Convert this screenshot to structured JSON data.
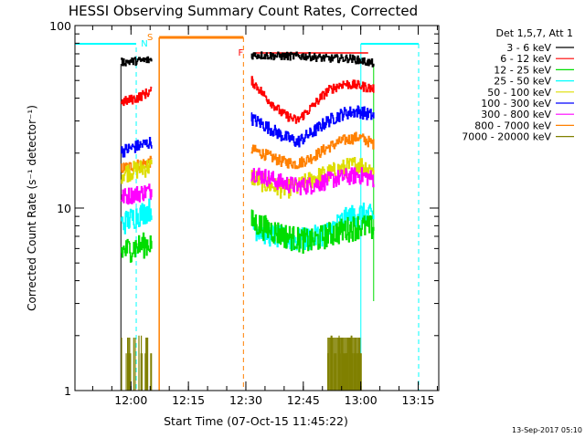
{
  "chart_data": {
    "type": "line",
    "title": "HESSI Observing Summary Count Rates, Corrected",
    "xlabel": "Start Time (07-Oct-15 11:45:22)",
    "ylabel": "Corrected Count Rate (s⁻¹ detector⁻¹)",
    "x_unit": "minutes after 11:45:22",
    "xlim": [
      0,
      95
    ],
    "ylim": [
      1,
      100
    ],
    "yscale": "log",
    "grid": false,
    "legend_position": "right, outside plot",
    "legend_title": "Det 1,5,7, Att 1",
    "x_ticks": [
      "12:00",
      "12:15",
      "12:30",
      "12:45",
      "13:00",
      "13:15"
    ],
    "x_tick_values": [
      14.63,
      29.63,
      44.63,
      59.63,
      74.63,
      89.63
    ],
    "y_ticks": [
      "1",
      "10",
      "100"
    ],
    "y_tick_values": [
      1,
      10,
      100
    ],
    "series": [
      {
        "name": "3 - 6 keV",
        "color": "#000000",
        "x": [
          12,
          20,
          46,
          54,
          60,
          66,
          72,
          78
        ],
        "y": [
          63,
          65,
          69,
          68,
          68,
          66,
          66,
          62
        ]
      },
      {
        "name": "6 - 12 keV",
        "color": "#ff0000",
        "x": [
          12,
          16,
          20,
          46,
          50,
          54,
          58,
          62,
          66,
          70,
          74,
          78
        ],
        "y": [
          38,
          40,
          44,
          50,
          40,
          33,
          30,
          36,
          44,
          48,
          47,
          45
        ]
      },
      {
        "name": "12 - 25 keV",
        "color": "#00dd00",
        "x": [
          12,
          20,
          46,
          50,
          54,
          58,
          62,
          66,
          70,
          74,
          78
        ],
        "y": [
          5.8,
          6.5,
          8.5,
          7.8,
          7.2,
          6.8,
          6.6,
          7.2,
          7.6,
          8.0,
          7.8
        ]
      },
      {
        "name": "25 - 50 keV",
        "color": "#00ffff",
        "x": [
          12,
          20,
          46,
          50,
          54,
          58,
          62,
          66,
          70,
          74,
          78
        ],
        "y": [
          8.2,
          10,
          8.0,
          7.3,
          6.9,
          6.7,
          6.9,
          7.4,
          8.6,
          9.4,
          9.0
        ]
      },
      {
        "name": "50 - 100 keV",
        "color": "#dddd00",
        "x": [
          12,
          20,
          46,
          50,
          54,
          58,
          62,
          66,
          70,
          74,
          78
        ],
        "y": [
          15.5,
          17,
          15,
          13.5,
          12.8,
          13,
          14.5,
          15.5,
          16.5,
          17.5,
          16
        ]
      },
      {
        "name": "100 - 300 keV",
        "color": "#0000ff",
        "x": [
          12,
          20,
          46,
          50,
          54,
          58,
          62,
          66,
          70,
          74,
          78
        ],
        "y": [
          20.5,
          23,
          31,
          28,
          25,
          23,
          26,
          30,
          33,
          34,
          32
        ]
      },
      {
        "name": "300 - 800 keV",
        "color": "#ff00ff",
        "x": [
          12,
          20,
          46,
          50,
          54,
          58,
          62,
          66,
          70,
          74,
          78
        ],
        "y": [
          11.5,
          12.5,
          15.8,
          14.8,
          13.8,
          13.2,
          13.4,
          14.2,
          14.8,
          15.2,
          14.5
        ]
      },
      {
        "name": "800 - 7000 keV",
        "color": "#ff8000",
        "x": [
          12,
          20,
          46,
          50,
          54,
          58,
          62,
          66,
          70,
          74,
          78
        ],
        "y": [
          16.5,
          18,
          21,
          19.5,
          18,
          17.5,
          19,
          21.5,
          23.5,
          24.5,
          22.5
        ]
      },
      {
        "name": "7000 - 20000 keV",
        "color": "#808000",
        "x": [
          12,
          20,
          66,
          74
        ],
        "y": [
          1.4,
          1.4,
          1.5,
          1.7
        ]
      }
    ],
    "annotations": [
      {
        "label": "N",
        "color": "#00ffff",
        "x": 16
      },
      {
        "label": "S",
        "color": "#ff8000",
        "x": 22
      },
      {
        "label": "F",
        "color": "#ff0000",
        "x": 44
      }
    ]
  },
  "footer": {
    "timestamp": "13-Sep-2017 05:10"
  }
}
